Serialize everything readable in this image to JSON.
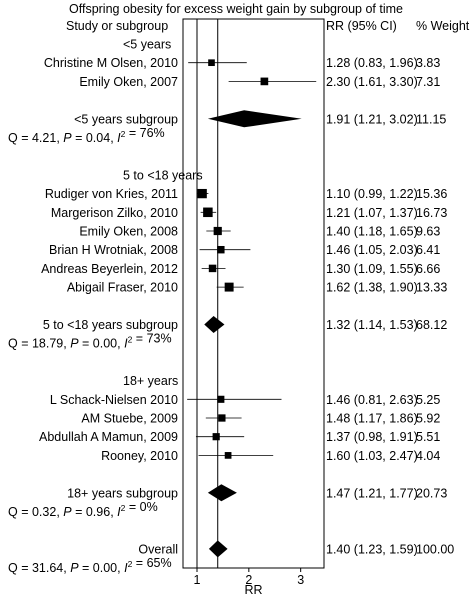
{
  "chart_data": {
    "type": "forest",
    "title": "Offspring obesity for excess weight gain by subgroup of time",
    "xlabel": "RR",
    "x_ticks": [
      1,
      2,
      3
    ],
    "xlim": [
      0.73,
      3.45
    ],
    "reference_line": 1,
    "headers": {
      "study": "Study or subgroup",
      "rr": "RR (95% CI)",
      "weight": "% Weight"
    },
    "rows": [
      {
        "kind": "group",
        "label": "<5 years"
      },
      {
        "kind": "study",
        "label": "Christine M Olsen, 2010",
        "rr": 1.28,
        "lo": 0.83,
        "hi": 1.96,
        "ci_text": "1.28 (0.83, 1.96)",
        "weight": "3.83"
      },
      {
        "kind": "study",
        "label": "Emily Oken, 2007",
        "rr": 2.3,
        "lo": 1.61,
        "hi": 3.3,
        "ci_text": "2.30 (1.61, 3.30)",
        "weight": "7.31"
      },
      {
        "kind": "gap"
      },
      {
        "kind": "subtotal",
        "label": "<5 years subgroup",
        "rr": 1.91,
        "lo": 1.21,
        "hi": 3.02,
        "ci_text": "1.91 (1.21, 3.02)",
        "weight": "11.15"
      },
      {
        "kind": "het",
        "q": "4.21",
        "p": "0.04",
        "i2": "76%"
      },
      {
        "kind": "gap"
      },
      {
        "kind": "group",
        "label": "5 to <18 years"
      },
      {
        "kind": "study",
        "label": "Rudiger von Kries, 2011",
        "rr": 1.1,
        "lo": 0.99,
        "hi": 1.22,
        "ci_text": "1.10 (0.99, 1.22)",
        "weight": "15.36"
      },
      {
        "kind": "study",
        "label": "Margerison Zilko, 2010",
        "rr": 1.21,
        "lo": 1.07,
        "hi": 1.37,
        "ci_text": "1.21 (1.07, 1.37)",
        "weight": "16.73"
      },
      {
        "kind": "study",
        "label": "Emily Oken, 2008",
        "rr": 1.4,
        "lo": 1.18,
        "hi": 1.65,
        "ci_text": "1.40 (1.18, 1.65)",
        "weight": "9.63"
      },
      {
        "kind": "study",
        "label": "Brian H Wrotniak, 2008",
        "rr": 1.46,
        "lo": 1.05,
        "hi": 2.03,
        "ci_text": "1.46 (1.05, 2.03)",
        "weight": "6.41"
      },
      {
        "kind": "study",
        "label": "Andreas Beyerlein, 2012",
        "rr": 1.3,
        "lo": 1.09,
        "hi": 1.55,
        "ci_text": "1.30 (1.09, 1.55)",
        "weight": "6.66"
      },
      {
        "kind": "study",
        "label": "Abigail Fraser, 2010",
        "rr": 1.62,
        "lo": 1.38,
        "hi": 1.9,
        "ci_text": "1.62 (1.38, 1.90)",
        "weight": "13.33"
      },
      {
        "kind": "gap"
      },
      {
        "kind": "subtotal",
        "label": "5 to <18 years subgroup",
        "rr": 1.32,
        "lo": 1.14,
        "hi": 1.53,
        "ci_text": "1.32 (1.14, 1.53)",
        "weight": "68.12"
      },
      {
        "kind": "het",
        "q": "18.79",
        "p": "0.00",
        "i2": "73%"
      },
      {
        "kind": "gap"
      },
      {
        "kind": "group",
        "label": "18+ years"
      },
      {
        "kind": "study",
        "label": "L Schack-Nielsen 2010",
        "rr": 1.46,
        "lo": 0.81,
        "hi": 2.63,
        "ci_text": "1.46 (0.81, 2.63)",
        "weight": "5.25"
      },
      {
        "kind": "study",
        "label": "AM Stuebe, 2009",
        "rr": 1.48,
        "lo": 1.17,
        "hi": 1.86,
        "ci_text": "1.48 (1.17, 1.86)",
        "weight": "5.92"
      },
      {
        "kind": "study",
        "label": "Abdullah A Mamun, 2009",
        "rr": 1.37,
        "lo": 0.98,
        "hi": 1.91,
        "ci_text": "1.37 (0.98, 1.91)",
        "weight": "5.51"
      },
      {
        "kind": "study",
        "label": "Rooney, 2010",
        "rr": 1.6,
        "lo": 1.03,
        "hi": 2.47,
        "ci_text": "1.60 (1.03, 2.47)",
        "weight": "4.04"
      },
      {
        "kind": "gap"
      },
      {
        "kind": "subtotal",
        "label": "18+ years subgroup",
        "rr": 1.47,
        "lo": 1.21,
        "hi": 1.77,
        "ci_text": "1.47 (1.21, 1.77)",
        "weight": "20.73"
      },
      {
        "kind": "het",
        "q": "0.32",
        "p": "0.96",
        "i2": "0%"
      },
      {
        "kind": "gap"
      },
      {
        "kind": "subtotal",
        "label": "Overall",
        "rr": 1.4,
        "lo": 1.23,
        "hi": 1.59,
        "ci_text": "1.40 (1.23, 1.59)",
        "weight": "100.00"
      },
      {
        "kind": "het",
        "q": "31.64",
        "p": "0.00",
        "i2": "65%"
      }
    ]
  }
}
